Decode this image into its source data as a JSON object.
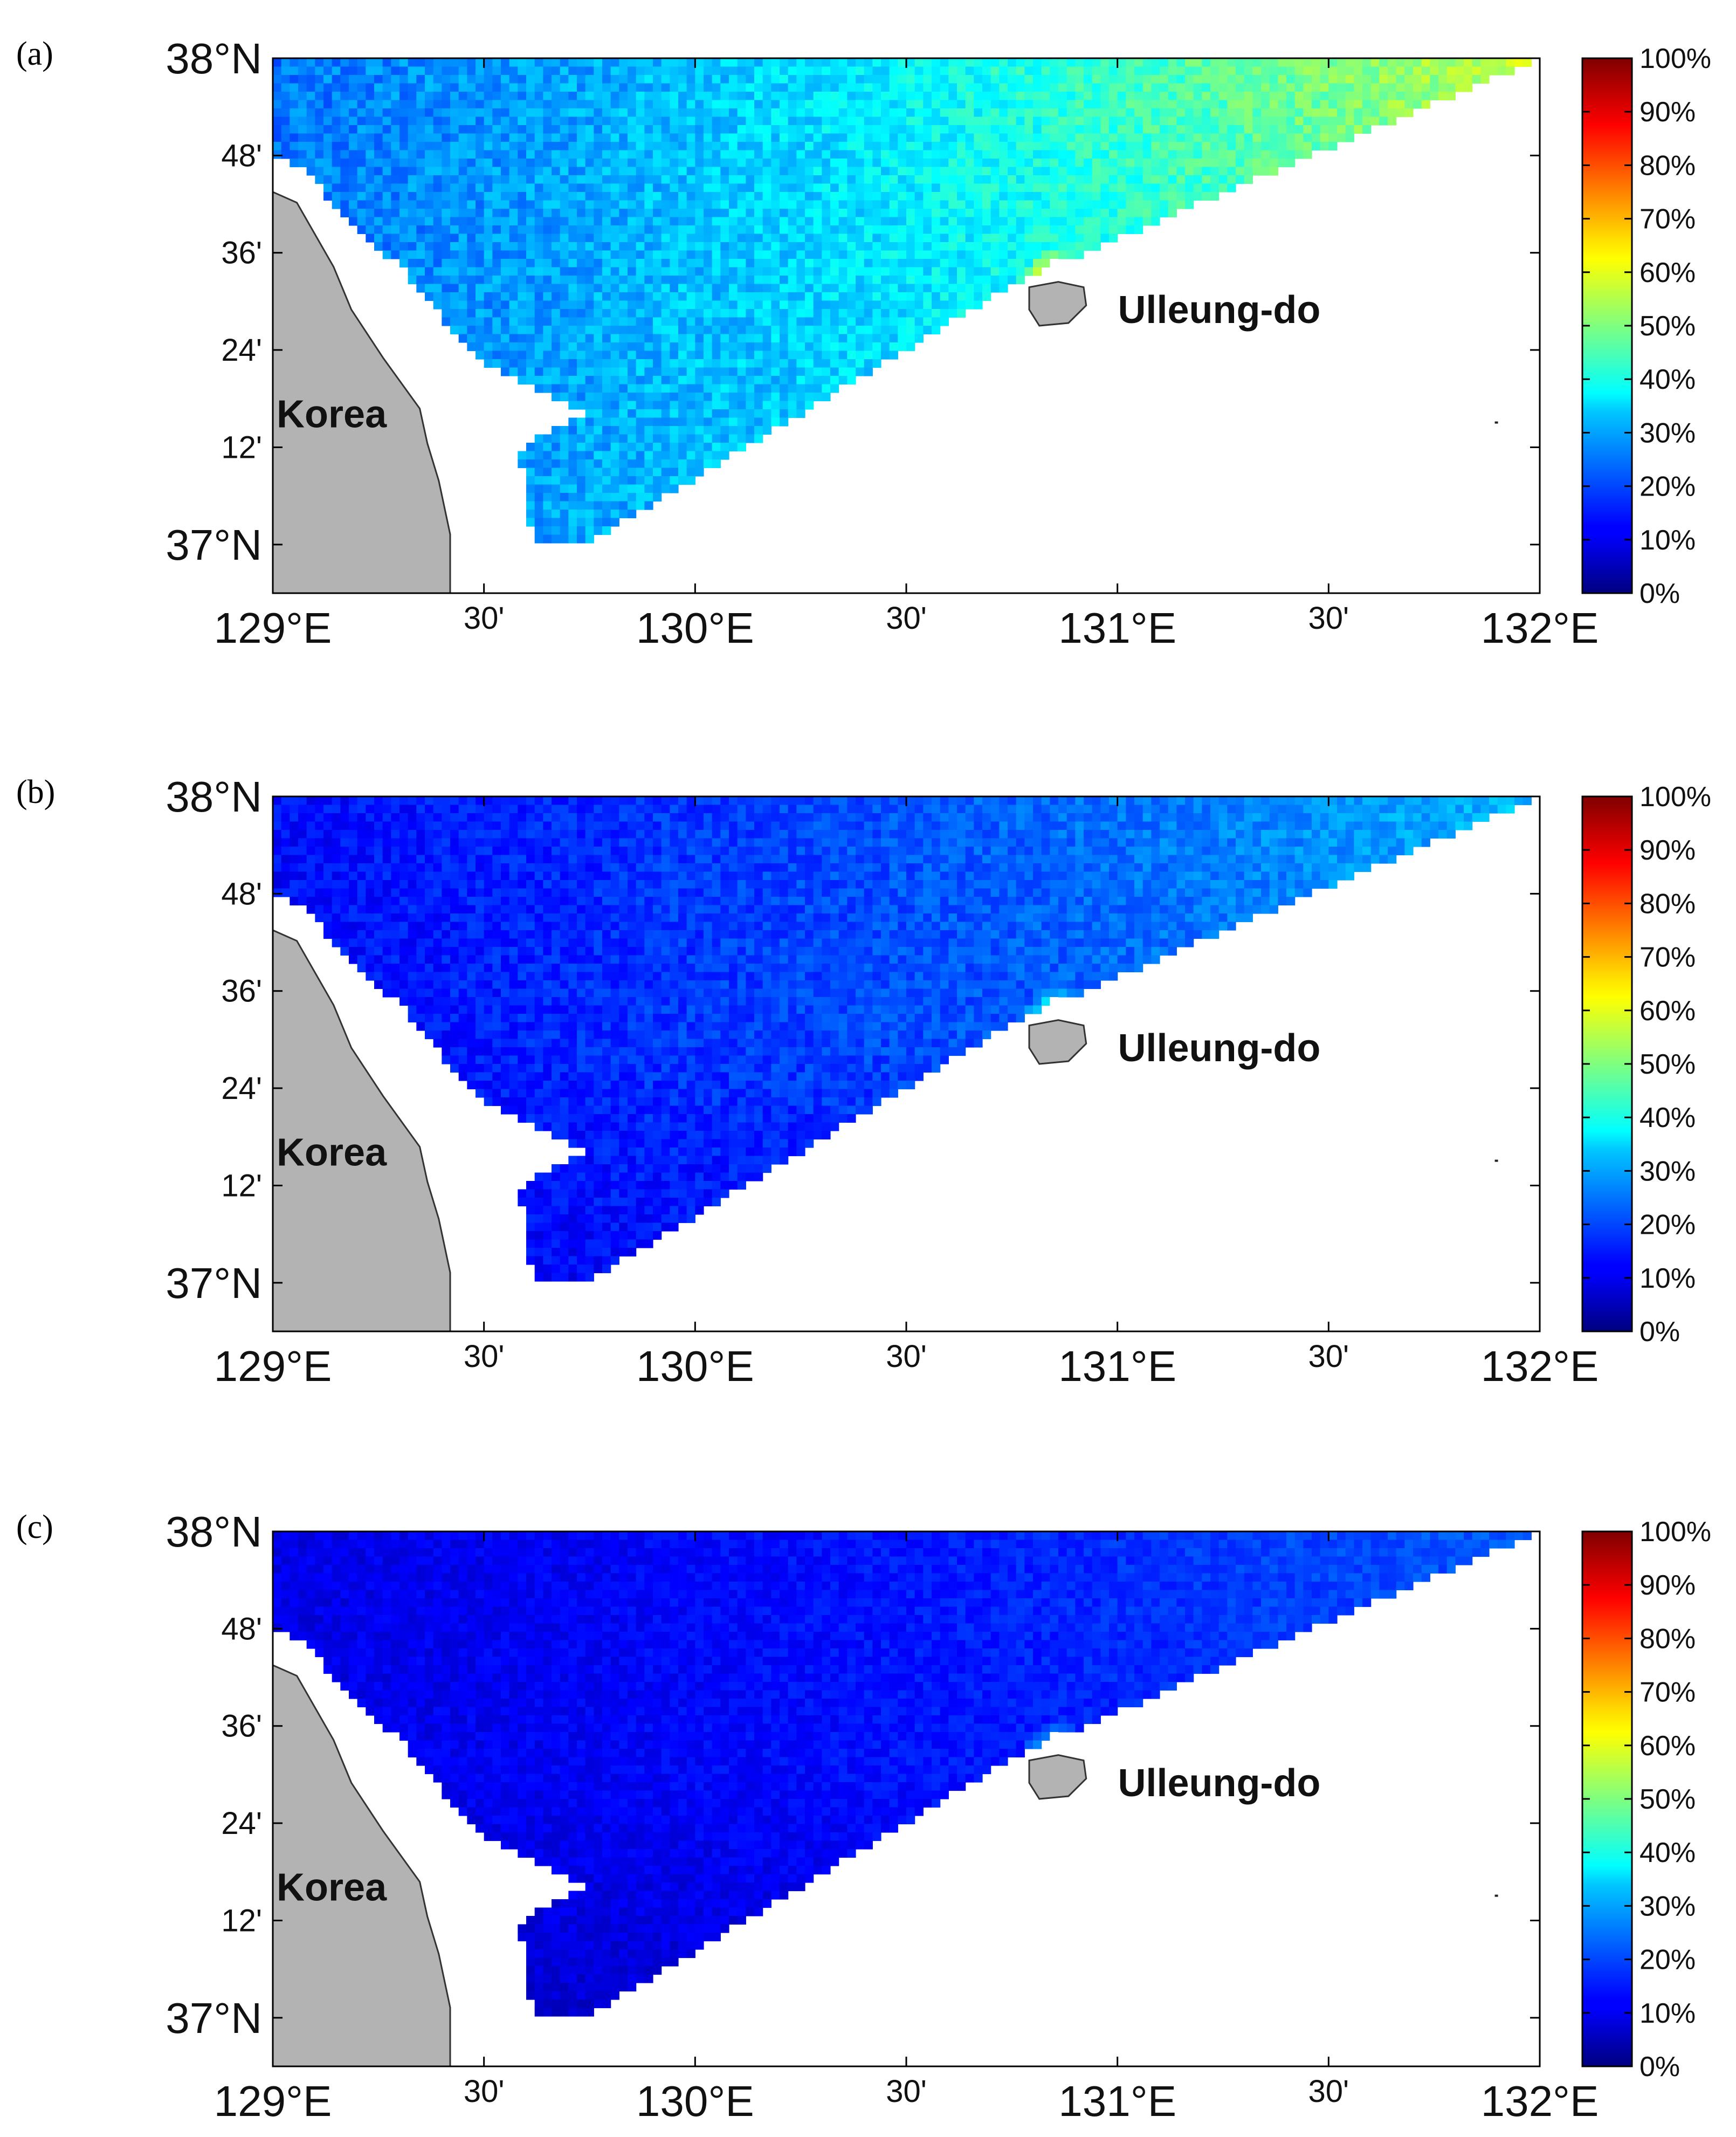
{
  "panels": [
    {
      "label": "(a)",
      "key": "a",
      "field": {
        "base": 0.3,
        "ne_gain": 0.27,
        "coast_drop": 0.06,
        "noise": 0.05,
        "island_halo": 0.55
      }
    },
    {
      "label": "(b)",
      "key": "b",
      "field": {
        "base": 0.17,
        "ne_gain": 0.14,
        "coast_drop": 0.04,
        "sw_dark": 0.08,
        "noise": 0.04,
        "island_halo": 0.4
      }
    },
    {
      "label": "(c)",
      "key": "c",
      "field": {
        "base": 0.12,
        "ne_gain": 0.1,
        "coast_drop": 0.02,
        "sw_dark": 0.07,
        "noise": 0.03,
        "island_halo": 0.35
      }
    }
  ],
  "axes": {
    "lat_labels": [
      "38°N",
      "48'",
      "36'",
      "24'",
      "12'",
      "37°N"
    ],
    "lon_labels": [
      "129°E",
      "30'",
      "130°E",
      "30'",
      "131°E",
      "30'",
      "132°E"
    ],
    "lat_range": [
      36.95,
      38.0
    ],
    "lon_range": [
      129.0,
      132.0
    ]
  },
  "colorbar": {
    "labels": [
      "100%",
      "90%",
      "80%",
      "70%",
      "60%",
      "50%",
      "40%",
      "30%",
      "20%",
      "10%",
      "0%"
    ],
    "range": [
      0,
      100
    ],
    "colormap": "jet"
  },
  "places": {
    "land": "Korea",
    "island": "Ulleung-do"
  },
  "colors": {
    "land": "#b3b3b3",
    "coast": "#333333",
    "frame": "#000000"
  }
}
